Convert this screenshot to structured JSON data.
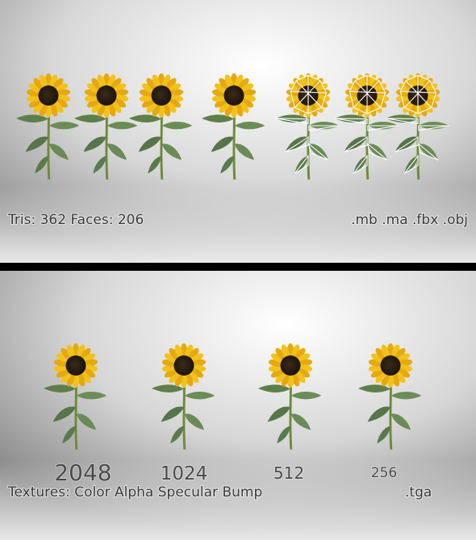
{
  "top_panel": {
    "stats": "Tris: 362 Faces: 206",
    "formats": ".mb .ma .fbx .obj"
  },
  "bottom_panel": {
    "resolutions": [
      "2048",
      "1024",
      "512",
      "256"
    ],
    "textures": "Textures: Color Alpha Specular Bump",
    "format": ".tga"
  }
}
